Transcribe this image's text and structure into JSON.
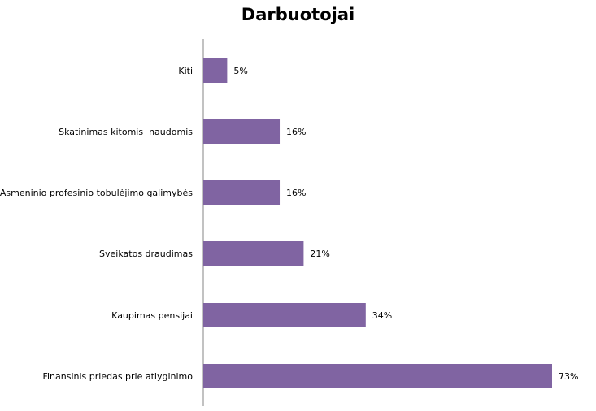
{
  "chart_data": {
    "type": "bar",
    "orientation": "horizontal",
    "title": "Darbuotojai",
    "categories": [
      "Kiti",
      "Skatinimas kitomis  naudomis",
      "Asmeninio profesinio tobulėjimo galimybės",
      "Sveikatos draudimas",
      "Kaupimas pensijai",
      "Finansinis priedas prie atlyginimo"
    ],
    "values": [
      5,
      16,
      16,
      21,
      34,
      73
    ],
    "value_labels": [
      "5%",
      "16%",
      "16%",
      "21%",
      "34%",
      "73%"
    ],
    "xlim": [
      0,
      100
    ],
    "unit": "%",
    "grid": false,
    "legend": "none",
    "bar_color": "#8064A2"
  }
}
